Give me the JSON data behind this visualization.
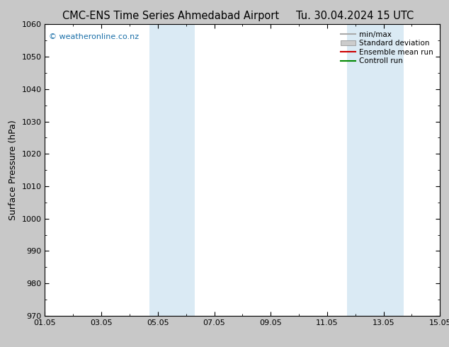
{
  "title_left": "CMC-ENS Time Series Ahmedabad Airport",
  "title_right": "Tu. 30.04.2024 15 UTC",
  "ylabel": "Surface Pressure (hPa)",
  "ylim": [
    970,
    1060
  ],
  "yticks": [
    970,
    980,
    990,
    1000,
    1010,
    1020,
    1030,
    1040,
    1050,
    1060
  ],
  "xlim_start": 0,
  "xlim_end": 14,
  "xtick_labels": [
    "01.05",
    "03.05",
    "05.05",
    "07.05",
    "09.05",
    "11.05",
    "13.05",
    "15.05"
  ],
  "xtick_positions": [
    0,
    2,
    4,
    6,
    8,
    10,
    12,
    14
  ],
  "shaded_bands": [
    {
      "xmin": 3.7,
      "xmax": 5.3,
      "color": "#daeaf4"
    },
    {
      "xmin": 10.7,
      "xmax": 12.7,
      "color": "#daeaf4"
    }
  ],
  "watermark": "© weatheronline.co.nz",
  "legend_items": [
    {
      "label": "min/max",
      "color": "#aaaaaa",
      "lw": 1.5,
      "type": "line"
    },
    {
      "label": "Standard deviation",
      "color": "#cccccc",
      "lw": 6,
      "type": "patch"
    },
    {
      "label": "Ensemble mean run",
      "color": "#cc0000",
      "lw": 1.5,
      "type": "line"
    },
    {
      "label": "Controll run",
      "color": "#008800",
      "lw": 1.5,
      "type": "line"
    }
  ],
  "bg_color": "#c8c8c8",
  "axes_bg": "#ffffff",
  "title_fontsize": 10.5,
  "axis_label_fontsize": 9,
  "tick_fontsize": 8,
  "watermark_color": "#1a6fa8",
  "legend_fontsize": 7.5
}
